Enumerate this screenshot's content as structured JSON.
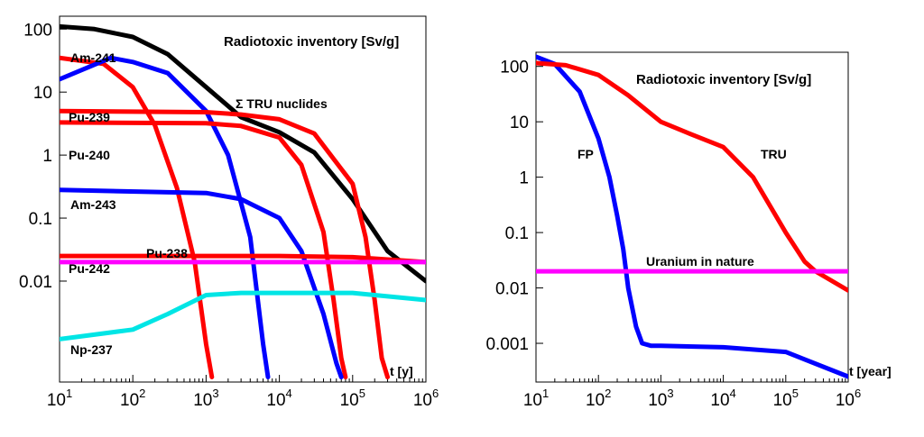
{
  "chart_data": [
    {
      "type": "line",
      "title": "Radiotoxic inventory [Sv/g]",
      "xlabel": "t [y]",
      "ylabel": "",
      "xscale": "log",
      "yscale": "log",
      "xlim": [
        10,
        1000000
      ],
      "ylim": [
        0.00025,
        160
      ],
      "grid": false,
      "xticks": [
        {
          "base": "10",
          "exp": "1",
          "value": 10
        },
        {
          "base": "10",
          "exp": "2",
          "value": 100
        },
        {
          "base": "10",
          "exp": "3",
          "value": 1000
        },
        {
          "base": "10",
          "exp": "4",
          "value": 10000
        },
        {
          "base": "10",
          "exp": "5",
          "value": 100000
        },
        {
          "base": "10",
          "exp": "6",
          "value": 1000000
        }
      ],
      "yticks": [
        {
          "label": "100",
          "value": 100
        },
        {
          "label": "10",
          "value": 10
        },
        {
          "label": "1",
          "value": 1
        },
        {
          "label": "0.1",
          "value": 0.1
        },
        {
          "label": "0.01",
          "value": 0.01
        }
      ],
      "series": [
        {
          "name": "Σ TRU nuclides",
          "color": "#000000",
          "x": [
            10,
            30,
            100,
            300,
            1000,
            3000,
            10000,
            30000,
            100000,
            300000,
            1000000
          ],
          "y": [
            110,
            100,
            75,
            40,
            12,
            4,
            2.3,
            1.1,
            0.2,
            0.03,
            0.01
          ]
        },
        {
          "name": "Am-241",
          "color": "#ff0000",
          "x": [
            10,
            40,
            100,
            200,
            400,
            700,
            1000,
            1200
          ],
          "y": [
            35,
            28,
            12,
            3,
            0.3,
            0.02,
            0.001,
            0.0003
          ]
        },
        {
          "name": "Pu-238",
          "color": "#0000ff",
          "x": [
            10,
            50,
            100,
            300,
            1000,
            2000,
            4000,
            6000,
            7000
          ],
          "y": [
            16,
            35,
            30,
            20,
            5,
            1,
            0.05,
            0.001,
            0.0003
          ]
        },
        {
          "name": "Pu-239",
          "color": "#ff0000",
          "x": [
            10,
            1000,
            3000,
            10000,
            30000,
            100000,
            150000,
            200000,
            250000,
            300000
          ],
          "y": [
            5,
            4.8,
            4.4,
            3.7,
            2.2,
            0.35,
            0.05,
            0.005,
            0.0006,
            0.0003
          ]
        },
        {
          "name": "Pu-240",
          "color": "#ff0000",
          "x": [
            10,
            1000,
            3000,
            10000,
            20000,
            40000,
            55000,
            70000,
            80000
          ],
          "y": [
            3.3,
            3.2,
            2.9,
            1.9,
            0.7,
            0.06,
            0.005,
            0.0006,
            0.0003
          ]
        },
        {
          "name": "Am-243",
          "color": "#0000ff",
          "x": [
            10,
            1000,
            3000,
            10000,
            20000,
            40000,
            60000,
            70000
          ],
          "y": [
            0.28,
            0.25,
            0.2,
            0.1,
            0.03,
            0.003,
            0.0005,
            0.0003
          ]
        },
        {
          "name": "Pu-242",
          "color": "#ff0000",
          "x": [
            10,
            10000,
            100000,
            300000,
            1000000
          ],
          "y": [
            0.025,
            0.025,
            0.024,
            0.022,
            0.02
          ]
        },
        {
          "name": "Uranium in nature",
          "color": "#ff00ff",
          "x": [
            10,
            1000000
          ],
          "y": [
            0.02,
            0.02
          ]
        },
        {
          "name": "Np-237",
          "color": "#00e5e5",
          "x": [
            10,
            100,
            300,
            1000,
            3000,
            10000,
            100000,
            1000000
          ],
          "y": [
            0.0012,
            0.0017,
            0.003,
            0.006,
            0.0065,
            0.0065,
            0.0065,
            0.005
          ]
        }
      ]
    },
    {
      "type": "line",
      "title": "Radiotoxic inventory [Sv/g]",
      "xlabel": "t [year]",
      "ylabel": "",
      "xscale": "log",
      "yscale": "log",
      "xlim": [
        10,
        1000000
      ],
      "ylim": [
        0.0002,
        180
      ],
      "grid": false,
      "xticks": [
        {
          "base": "10",
          "exp": "1",
          "value": 10
        },
        {
          "base": "10",
          "exp": "2",
          "value": 100
        },
        {
          "base": "10",
          "exp": "3",
          "value": 1000
        },
        {
          "base": "10",
          "exp": "4",
          "value": 10000
        },
        {
          "base": "10",
          "exp": "5",
          "value": 100000
        },
        {
          "base": "10",
          "exp": "6",
          "value": 1000000
        }
      ],
      "yticks": [
        {
          "label": "100",
          "value": 100
        },
        {
          "label": "10",
          "value": 10
        },
        {
          "label": "1",
          "value": 1
        },
        {
          "label": "0.1",
          "value": 0.1
        },
        {
          "label": "0.01",
          "value": 0.01
        },
        {
          "label": "0.001",
          "value": 0.001
        }
      ],
      "series": [
        {
          "name": "FP",
          "color": "#0000ff",
          "x": [
            10,
            20,
            50,
            100,
            150,
            200,
            250,
            300,
            400,
            500,
            700,
            1000,
            10000,
            100000,
            1000000
          ],
          "y": [
            150,
            110,
            35,
            5,
            1,
            0.2,
            0.05,
            0.01,
            0.002,
            0.001,
            0.0009,
            0.0009,
            0.00085,
            0.0007,
            0.00025
          ]
        },
        {
          "name": "TRU",
          "color": "#ff0000",
          "x": [
            10,
            30,
            100,
            300,
            1000,
            3000,
            10000,
            30000,
            100000,
            200000,
            300000,
            1000000
          ],
          "y": [
            115,
            105,
            70,
            30,
            10,
            6,
            3.5,
            1,
            0.1,
            0.03,
            0.02,
            0.009
          ]
        },
        {
          "name": "Uranium in nature",
          "color": "#ff00ff",
          "x": [
            10,
            1000000
          ],
          "y": [
            0.02,
            0.02
          ]
        }
      ]
    }
  ]
}
